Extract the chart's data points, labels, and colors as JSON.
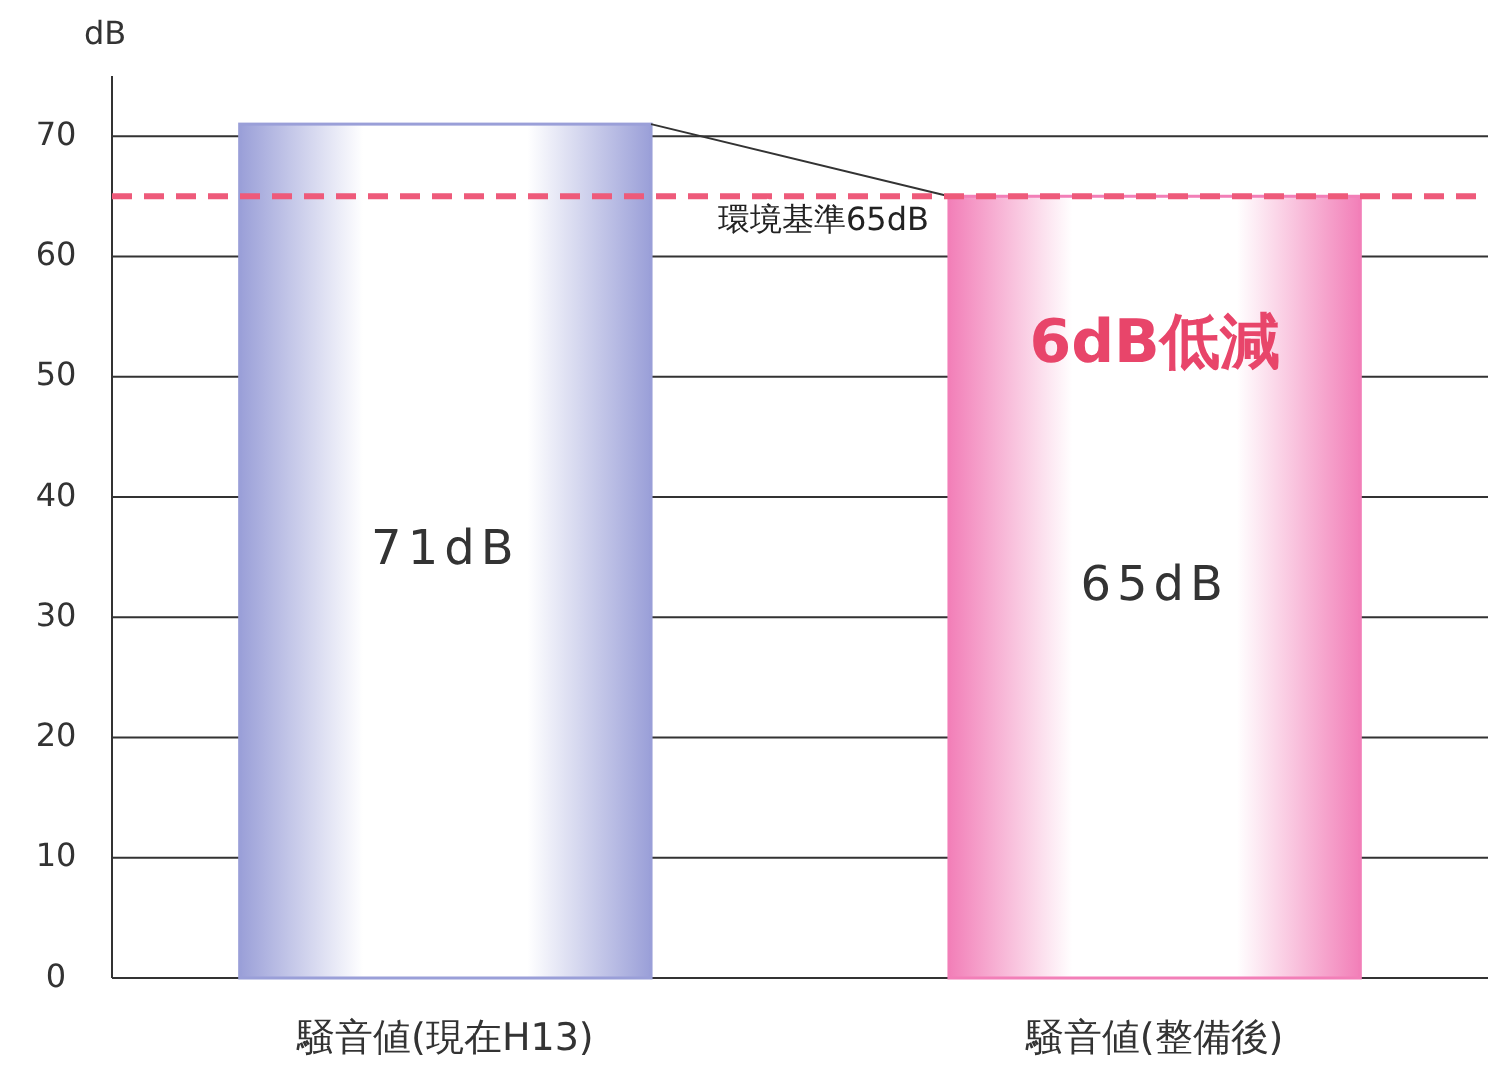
{
  "chart_data": {
    "type": "bar",
    "ylabel": "dB",
    "categories": [
      "騒音値(現在H13)",
      "騒音値(整備後)"
    ],
    "values": [
      71,
      65
    ],
    "colors": [
      "#9a9fd8",
      "#f27fb8"
    ],
    "value_labels": [
      "71dB",
      "65dB"
    ],
    "ylim": [
      0,
      75
    ],
    "yticks": [
      0,
      10,
      20,
      30,
      40,
      50,
      60,
      70
    ],
    "grid": "y",
    "ref_lines": [
      {
        "axis": "y",
        "value": 65,
        "label": "環境基準65dB",
        "color": "#ee5a7a",
        "line_style": "dashed"
      }
    ],
    "annotations": [
      "6dB低減"
    ]
  }
}
